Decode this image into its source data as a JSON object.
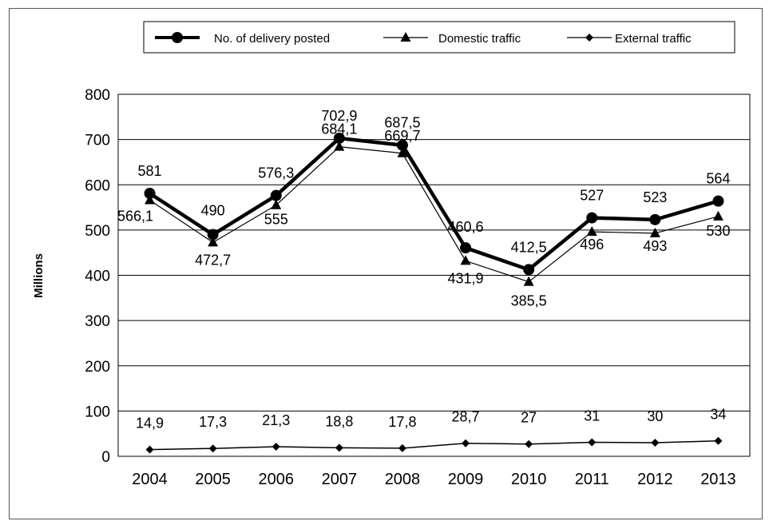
{
  "chart_data": {
    "type": "line",
    "categories": [
      "2004",
      "2005",
      "2006",
      "2007",
      "2008",
      "2009",
      "2010",
      "2011",
      "2012",
      "2013"
    ],
    "ylabel": "Millions",
    "ylim": [
      0,
      800
    ],
    "yticks": [
      0,
      100,
      200,
      300,
      400,
      500,
      600,
      700,
      800
    ],
    "grid": true,
    "legend_position": "top",
    "series": [
      {
        "name": "No. of delivery posted",
        "marker": "circle",
        "color": "#000000",
        "values": [
          581,
          490,
          576.3,
          702.9,
          687.5,
          460.6,
          412.5,
          527,
          523,
          564
        ],
        "labels": [
          "581",
          "490",
          "576,3",
          "702,9",
          "687,5",
          "460,6",
          "412,5",
          "527",
          "523",
          "564"
        ]
      },
      {
        "name": "Domestic traffic",
        "marker": "triangle",
        "color": "#000000",
        "values": [
          566.1,
          472.7,
          555,
          684.1,
          669.7,
          431.9,
          385.5,
          496,
          493,
          530
        ],
        "labels": [
          "566,1",
          "472,7",
          "555",
          "684,1",
          "669,7",
          "431,9",
          "385,5",
          "496",
          "493",
          "530"
        ]
      },
      {
        "name": "External traffic",
        "marker": "diamond",
        "color": "#000000",
        "values": [
          14.9,
          17.3,
          21.3,
          18.8,
          17.8,
          28.7,
          27,
          31,
          30,
          34
        ],
        "labels": [
          "14,9",
          "17,3",
          "21,3",
          "18,8",
          "17,8",
          "28,7",
          "27",
          "31",
          "30",
          "34"
        ]
      }
    ]
  }
}
